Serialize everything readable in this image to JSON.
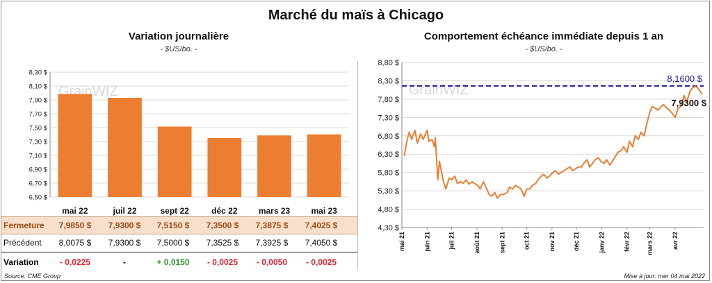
{
  "header": {
    "title": "Marché du maïs à Chicago",
    "left_title": "Variation  journalière",
    "left_unit": "- $US/bo. -",
    "right_title": "Comportement  échéance immédiate depuis 1 an",
    "right_unit": "- $US/bo. -",
    "watermark": "GrainWIZ"
  },
  "footer": {
    "source": "Source: CME Group",
    "updated": "Mise à jour: mer 04 mai 2022"
  },
  "table": {
    "rows": {
      "ferm": "Fermeture",
      "prec": "Précédent",
      "var": "Variation"
    },
    "fermeture": [
      "7,9850  $",
      "7,9300  $",
      "7,5150  $",
      "7,3500  $",
      "7,3875  $",
      "7,4025  $"
    ],
    "precedent": [
      "8,0075  $",
      "7,9300  $",
      "7,5000  $",
      "7,3525  $",
      "7,3925  $",
      "7,4050  $"
    ],
    "variation": [
      "- 0,0225",
      "-",
      "+ 0,0150",
      "- 0,0025",
      "- 0,0050",
      "- 0,0025"
    ],
    "variation_sign": [
      "neg",
      "neu",
      "pos",
      "neg",
      "neg",
      "neg"
    ]
  },
  "chart_data": [
    {
      "type": "bar",
      "title": "Variation  journalière",
      "ylabel": "- $US/bo. -",
      "categories": [
        "mai 22",
        "juil 22",
        "sept 22",
        "déc 22",
        "mars 23",
        "mai 23"
      ],
      "values": [
        7.985,
        7.93,
        7.515,
        7.35,
        7.3875,
        7.4025
      ],
      "ylim": [
        6.5,
        8.3
      ],
      "yticks": [
        "8,30 $",
        "8,10 $",
        "7,90 $",
        "7,70 $",
        "7,50 $",
        "7,30 $",
        "7,10 $",
        "6,90 $",
        "6,70 $",
        "6,50 $"
      ],
      "color": "#ed7d31",
      "grid": true
    },
    {
      "type": "line",
      "title": "Comportement  échéance immédiate depuis 1 an",
      "ylabel": "- $US/bo. -",
      "ylim": [
        4.3,
        8.8
      ],
      "yticks": [
        "8,80 $",
        "8,30 $",
        "7,80 $",
        "7,30 $",
        "6,80 $",
        "6,30 $",
        "5,80 $",
        "5,30 $",
        "4,80 $",
        "4,30 $"
      ],
      "xticks": [
        "mai 21",
        "juin 21",
        "juil 21",
        "août 21",
        "sept 21",
        "oct 21",
        "nov 21",
        "déc 21",
        "janv 22",
        "févr 22",
        "mars 22",
        "avr 22"
      ],
      "color": "#ed7d31",
      "grid": true,
      "reference_line": {
        "value": 8.16,
        "label": "8,1600 $",
        "color": "#1a1aa8"
      },
      "last_label": "7,9300 $",
      "series": [
        {
          "x": [
            "2021-05-04",
            "2021-05-07",
            "2021-05-10",
            "2021-05-13",
            "2021-05-17",
            "2021-05-20",
            "2021-05-24",
            "2021-05-27",
            "2021-06-01",
            "2021-06-03",
            "2021-06-07",
            "2021-06-10",
            "2021-06-11",
            "2021-06-14",
            "2021-06-16",
            "2021-06-21",
            "2021-06-24",
            "2021-06-28",
            "2021-07-01",
            "2021-07-05",
            "2021-07-08",
            "2021-07-12",
            "2021-07-15",
            "2021-07-19",
            "2021-07-22",
            "2021-07-26",
            "2021-07-29",
            "2021-08-02",
            "2021-08-05",
            "2021-08-09",
            "2021-08-12",
            "2021-08-16",
            "2021-08-19",
            "2021-08-23",
            "2021-08-26",
            "2021-08-30",
            "2021-09-02",
            "2021-09-07",
            "2021-09-10",
            "2021-09-14",
            "2021-09-17",
            "2021-09-21",
            "2021-09-24",
            "2021-09-28",
            "2021-10-01",
            "2021-10-05",
            "2021-10-08",
            "2021-10-12",
            "2021-10-15",
            "2021-10-19",
            "2021-10-22",
            "2021-10-26",
            "2021-10-29",
            "2021-11-02",
            "2021-11-05",
            "2021-11-09",
            "2021-11-12",
            "2021-11-16",
            "2021-11-19",
            "2021-11-23",
            "2021-11-26",
            "2021-11-30",
            "2021-12-03",
            "2021-12-07",
            "2021-12-10",
            "2021-12-14",
            "2021-12-17",
            "2021-12-21",
            "2021-12-24",
            "2021-12-28",
            "2021-12-31",
            "2022-01-04",
            "2022-01-07",
            "2022-01-11",
            "2022-01-14",
            "2022-01-18",
            "2022-01-21",
            "2022-01-25",
            "2022-01-28",
            "2022-02-01",
            "2022-02-04",
            "2022-02-08",
            "2022-02-11",
            "2022-02-15",
            "2022-02-18",
            "2022-02-22",
            "2022-02-25",
            "2022-03-01",
            "2022-03-04",
            "2022-03-08",
            "2022-03-11",
            "2022-03-15",
            "2022-03-18",
            "2022-03-22",
            "2022-03-25",
            "2022-03-29",
            "2022-04-01",
            "2022-04-05",
            "2022-04-08",
            "2022-04-12",
            "2022-04-15",
            "2022-04-19",
            "2022-04-22",
            "2022-04-26",
            "2022-04-29",
            "2022-05-02",
            "2022-05-04"
          ],
          "y": [
            6.25,
            6.65,
            6.9,
            6.7,
            6.95,
            6.6,
            6.85,
            6.7,
            6.95,
            6.65,
            6.7,
            6.5,
            6.75,
            5.6,
            6.1,
            5.55,
            5.35,
            5.65,
            5.6,
            5.7,
            5.5,
            5.55,
            5.5,
            5.6,
            5.48,
            5.55,
            5.5,
            5.45,
            5.35,
            5.55,
            5.4,
            5.2,
            5.15,
            5.25,
            5.1,
            5.2,
            5.2,
            5.25,
            5.4,
            5.35,
            5.45,
            5.4,
            5.35,
            5.15,
            5.35,
            5.35,
            5.45,
            5.5,
            5.6,
            5.7,
            5.75,
            5.65,
            5.7,
            5.8,
            5.85,
            5.75,
            5.8,
            5.85,
            5.9,
            5.95,
            5.85,
            5.9,
            5.95,
            5.95,
            6.05,
            6.15,
            5.95,
            6.05,
            6.15,
            6.2,
            6.1,
            6.05,
            6.15,
            6.0,
            6.1,
            6.25,
            6.35,
            6.4,
            6.5,
            6.35,
            6.65,
            6.5,
            6.8,
            6.7,
            6.9,
            6.8,
            7.1,
            7.45,
            7.6,
            7.55,
            7.5,
            7.6,
            7.65,
            7.55,
            7.5,
            7.4,
            7.3,
            7.55,
            7.6,
            7.9,
            7.7,
            8.0,
            8.1,
            8.15,
            8.1,
            8.0,
            7.93
          ]
        }
      ]
    }
  ]
}
